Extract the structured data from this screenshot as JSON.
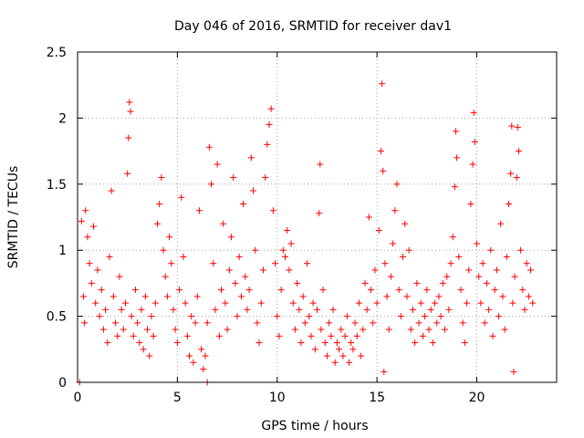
{
  "chart_data": {
    "type": "scatter",
    "title": "Day 046 of 2016, SRMTID for receiver dav1",
    "xlabel": "GPS time / hours",
    "ylabel": "SRMTID / TECUs",
    "xlim": [
      0,
      24
    ],
    "ylim": [
      0,
      2.5
    ],
    "grid": true,
    "marker": "+",
    "color": "#ff0000",
    "xticks": [
      0,
      5,
      10,
      15,
      20
    ],
    "xtick_labels": [
      "0",
      "5",
      "10",
      "15",
      "20"
    ],
    "yticks": [
      0,
      0.5,
      1,
      1.5,
      2,
      2.5
    ],
    "ytick_labels": [
      "0",
      "0.5",
      "1",
      "1.5",
      "2",
      "2.5"
    ],
    "series": [
      {
        "name": "SRMTID",
        "points": [
          [
            0.1,
            0.0
          ],
          [
            6.5,
            0.0
          ],
          [
            0.2,
            1.22
          ],
          [
            0.3,
            0.65
          ],
          [
            0.35,
            0.45
          ],
          [
            0.4,
            1.3
          ],
          [
            0.5,
            1.1
          ],
          [
            0.6,
            0.9
          ],
          [
            0.7,
            0.75
          ],
          [
            0.8,
            1.18
          ],
          [
            0.9,
            0.6
          ],
          [
            1.0,
            0.85
          ],
          [
            1.1,
            0.5
          ],
          [
            1.2,
            0.7
          ],
          [
            1.3,
            0.4
          ],
          [
            1.4,
            0.55
          ],
          [
            1.5,
            0.3
          ],
          [
            1.6,
            0.95
          ],
          [
            1.7,
            1.45
          ],
          [
            1.8,
            0.65
          ],
          [
            1.9,
            0.45
          ],
          [
            2.0,
            0.35
          ],
          [
            2.1,
            0.8
          ],
          [
            2.2,
            0.55
          ],
          [
            2.3,
            0.4
          ],
          [
            2.4,
            0.6
          ],
          [
            2.5,
            1.58
          ],
          [
            2.55,
            1.85
          ],
          [
            2.6,
            2.12
          ],
          [
            2.65,
            2.05
          ],
          [
            2.7,
            0.5
          ],
          [
            2.8,
            0.35
          ],
          [
            2.9,
            0.7
          ],
          [
            3.0,
            0.45
          ],
          [
            3.1,
            0.3
          ],
          [
            3.2,
            0.55
          ],
          [
            3.3,
            0.25
          ],
          [
            3.4,
            0.65
          ],
          [
            3.5,
            0.4
          ],
          [
            3.6,
            0.2
          ],
          [
            3.7,
            0.5
          ],
          [
            3.8,
            0.35
          ],
          [
            3.9,
            0.6
          ],
          [
            4.0,
            1.2
          ],
          [
            4.1,
            1.35
          ],
          [
            4.2,
            1.55
          ],
          [
            4.3,
            1.0
          ],
          [
            4.4,
            0.8
          ],
          [
            4.5,
            0.65
          ],
          [
            4.6,
            1.1
          ],
          [
            4.7,
            0.9
          ],
          [
            4.8,
            0.55
          ],
          [
            4.9,
            0.4
          ],
          [
            5.0,
            0.3
          ],
          [
            5.1,
            0.7
          ],
          [
            5.2,
            1.4
          ],
          [
            5.3,
            0.95
          ],
          [
            5.4,
            0.6
          ],
          [
            5.5,
            0.35
          ],
          [
            5.6,
            0.2
          ],
          [
            5.7,
            0.5
          ],
          [
            5.8,
            0.15
          ],
          [
            5.9,
            0.45
          ],
          [
            6.0,
            0.65
          ],
          [
            6.1,
            1.3
          ],
          [
            6.2,
            0.25
          ],
          [
            6.3,
            0.1
          ],
          [
            6.4,
            0.2
          ],
          [
            6.5,
            0.45
          ],
          [
            6.6,
            1.78
          ],
          [
            6.7,
            1.5
          ],
          [
            6.8,
            0.9
          ],
          [
            6.9,
            0.55
          ],
          [
            7.0,
            1.65
          ],
          [
            7.1,
            0.35
          ],
          [
            7.2,
            0.7
          ],
          [
            7.3,
            1.2
          ],
          [
            7.4,
            0.6
          ],
          [
            7.5,
            0.4
          ],
          [
            7.6,
            0.85
          ],
          [
            7.7,
            1.1
          ],
          [
            7.8,
            1.55
          ],
          [
            7.9,
            0.75
          ],
          [
            8.0,
            0.5
          ],
          [
            8.1,
            0.95
          ],
          [
            8.2,
            0.65
          ],
          [
            8.3,
            1.35
          ],
          [
            8.4,
            0.8
          ],
          [
            8.5,
            0.55
          ],
          [
            8.6,
            0.7
          ],
          [
            8.7,
            1.7
          ],
          [
            8.8,
            1.45
          ],
          [
            8.9,
            1.0
          ],
          [
            9.0,
            0.45
          ],
          [
            9.1,
            0.3
          ],
          [
            9.2,
            0.6
          ],
          [
            9.3,
            0.85
          ],
          [
            9.4,
            1.55
          ],
          [
            9.5,
            1.8
          ],
          [
            9.6,
            1.95
          ],
          [
            9.7,
            2.07
          ],
          [
            9.8,
            1.3
          ],
          [
            9.9,
            0.9
          ],
          [
            10.0,
            0.5
          ],
          [
            10.1,
            0.35
          ],
          [
            10.2,
            0.7
          ],
          [
            10.3,
            1.0
          ],
          [
            10.4,
            0.95
          ],
          [
            10.5,
            1.15
          ],
          [
            10.6,
            0.85
          ],
          [
            10.7,
            1.05
          ],
          [
            10.8,
            0.6
          ],
          [
            10.9,
            0.4
          ],
          [
            11.0,
            0.75
          ],
          [
            11.1,
            0.55
          ],
          [
            11.2,
            0.3
          ],
          [
            11.3,
            0.65
          ],
          [
            11.4,
            0.45
          ],
          [
            11.5,
            0.9
          ],
          [
            11.6,
            0.5
          ],
          [
            11.7,
            0.35
          ],
          [
            11.8,
            0.6
          ],
          [
            11.9,
            0.25
          ],
          [
            12.0,
            0.55
          ],
          [
            12.1,
            1.28
          ],
          [
            12.15,
            1.65
          ],
          [
            12.2,
            0.4
          ],
          [
            12.3,
            0.7
          ],
          [
            12.4,
            0.3
          ],
          [
            12.5,
            0.2
          ],
          [
            12.6,
            0.45
          ],
          [
            12.7,
            0.35
          ],
          [
            12.8,
            0.55
          ],
          [
            12.9,
            0.15
          ],
          [
            13.0,
            0.3
          ],
          [
            13.1,
            0.25
          ],
          [
            13.2,
            0.4
          ],
          [
            13.3,
            0.2
          ],
          [
            13.4,
            0.35
          ],
          [
            13.5,
            0.5
          ],
          [
            13.6,
            0.15
          ],
          [
            13.7,
            0.3
          ],
          [
            13.8,
            0.25
          ],
          [
            13.9,
            0.45
          ],
          [
            14.0,
            0.35
          ],
          [
            14.1,
            0.6
          ],
          [
            14.2,
            0.2
          ],
          [
            14.3,
            0.4
          ],
          [
            14.4,
            0.75
          ],
          [
            14.5,
            0.55
          ],
          [
            14.6,
            1.25
          ],
          [
            14.7,
            0.7
          ],
          [
            14.8,
            0.45
          ],
          [
            14.9,
            0.85
          ],
          [
            15.0,
            0.6
          ],
          [
            15.1,
            1.15
          ],
          [
            15.2,
            1.75
          ],
          [
            15.25,
            2.26
          ],
          [
            15.3,
            1.6
          ],
          [
            15.35,
            0.08
          ],
          [
            15.4,
            0.9
          ],
          [
            15.5,
            0.65
          ],
          [
            15.6,
            0.4
          ],
          [
            15.7,
            0.8
          ],
          [
            15.8,
            1.05
          ],
          [
            15.9,
            1.3
          ],
          [
            16.0,
            1.5
          ],
          [
            16.1,
            0.7
          ],
          [
            16.2,
            0.5
          ],
          [
            16.3,
            0.95
          ],
          [
            16.4,
            1.2
          ],
          [
            16.5,
            0.65
          ],
          [
            16.6,
            1.0
          ],
          [
            16.7,
            0.4
          ],
          [
            16.8,
            0.55
          ],
          [
            16.9,
            0.3
          ],
          [
            17.0,
            0.75
          ],
          [
            17.1,
            0.45
          ],
          [
            17.2,
            0.6
          ],
          [
            17.3,
            0.35
          ],
          [
            17.4,
            0.5
          ],
          [
            17.5,
            0.7
          ],
          [
            17.6,
            0.4
          ],
          [
            17.7,
            0.55
          ],
          [
            17.8,
            0.3
          ],
          [
            17.9,
            0.6
          ],
          [
            18.0,
            0.45
          ],
          [
            18.1,
            0.65
          ],
          [
            18.2,
            0.5
          ],
          [
            18.3,
            0.75
          ],
          [
            18.4,
            0.4
          ],
          [
            18.5,
            0.8
          ],
          [
            18.6,
            0.55
          ],
          [
            18.7,
            0.9
          ],
          [
            18.8,
            1.1
          ],
          [
            18.9,
            1.48
          ],
          [
            18.95,
            1.9
          ],
          [
            19.0,
            1.7
          ],
          [
            19.1,
            0.95
          ],
          [
            19.2,
            0.7
          ],
          [
            19.3,
            0.45
          ],
          [
            19.4,
            0.3
          ],
          [
            19.5,
            0.6
          ],
          [
            19.6,
            0.85
          ],
          [
            19.7,
            1.35
          ],
          [
            19.8,
            1.65
          ],
          [
            19.85,
            2.04
          ],
          [
            19.9,
            1.82
          ],
          [
            20.0,
            1.05
          ],
          [
            20.1,
            0.8
          ],
          [
            20.2,
            0.6
          ],
          [
            20.3,
            0.9
          ],
          [
            20.4,
            0.45
          ],
          [
            20.5,
            0.75
          ],
          [
            20.6,
            0.55
          ],
          [
            20.7,
            1.0
          ],
          [
            20.8,
            0.35
          ],
          [
            20.9,
            0.7
          ],
          [
            21.0,
            0.85
          ],
          [
            21.1,
            0.5
          ],
          [
            21.2,
            1.2
          ],
          [
            21.3,
            0.65
          ],
          [
            21.4,
            0.4
          ],
          [
            21.5,
            0.95
          ],
          [
            21.6,
            1.35
          ],
          [
            21.7,
            1.58
          ],
          [
            21.75,
            1.94
          ],
          [
            21.8,
            0.6
          ],
          [
            21.85,
            0.08
          ],
          [
            21.9,
            0.8
          ],
          [
            22.0,
            1.55
          ],
          [
            22.05,
            1.93
          ],
          [
            22.1,
            1.75
          ],
          [
            22.2,
            1.0
          ],
          [
            22.3,
            0.7
          ],
          [
            22.4,
            0.55
          ],
          [
            22.5,
            0.9
          ],
          [
            22.6,
            0.65
          ],
          [
            22.7,
            0.85
          ],
          [
            22.8,
            0.6
          ]
        ]
      }
    ]
  }
}
